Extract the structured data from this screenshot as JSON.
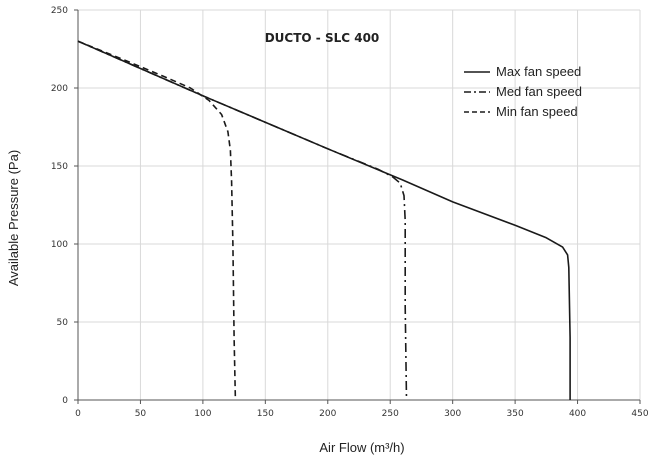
{
  "chart_data": {
    "type": "line",
    "title": "DUCTO - SLC 400",
    "xlabel": "Air Flow (m³/h)",
    "ylabel": "Available Pressure (Pa)",
    "xlim": [
      0,
      450
    ],
    "ylim": [
      0,
      250
    ],
    "x_ticks": [
      "0",
      "50",
      "100",
      "150",
      "200",
      "250",
      "300",
      "350",
      "400",
      "450"
    ],
    "y_ticks": [
      "0",
      "50",
      "100",
      "150",
      "200",
      "250"
    ],
    "grid": true,
    "legend_position": "top-right",
    "series": [
      {
        "name": "Max fan speed",
        "style": "solid",
        "points": [
          [
            0,
            230
          ],
          [
            100,
            195
          ],
          [
            200,
            161
          ],
          [
            260,
            141
          ],
          [
            300,
            127
          ],
          [
            350,
            112
          ],
          [
            375,
            104
          ],
          [
            388,
            98
          ],
          [
            392,
            93
          ],
          [
            393,
            85
          ],
          [
            394,
            40
          ],
          [
            394,
            0
          ]
        ]
      },
      {
        "name": "Med fan speed",
        "style": "dash-dot",
        "points": [
          [
            0,
            230
          ],
          [
            100,
            195
          ],
          [
            200,
            161
          ],
          [
            240,
            148
          ],
          [
            252,
            143
          ],
          [
            258,
            139
          ],
          [
            261,
            131
          ],
          [
            262,
            115
          ],
          [
            262,
            60
          ],
          [
            263,
            0
          ]
        ]
      },
      {
        "name": "Min fan speed",
        "style": "dashed",
        "points": [
          [
            0,
            230
          ],
          [
            40,
            217
          ],
          [
            70,
            207
          ],
          [
            90,
            200
          ],
          [
            105,
            192
          ],
          [
            115,
            183
          ],
          [
            120,
            172
          ],
          [
            122,
            160
          ],
          [
            123,
            140
          ],
          [
            124,
            100
          ],
          [
            125,
            40
          ],
          [
            126,
            0
          ]
        ]
      }
    ]
  }
}
